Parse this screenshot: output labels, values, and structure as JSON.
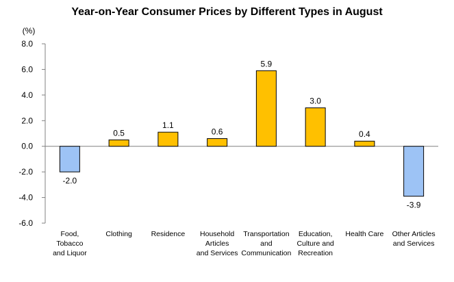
{
  "chart_data": {
    "type": "bar",
    "title": "Year-on-Year Consumer Prices by Different Types in August",
    "ylabel": "(%)",
    "ylim": [
      -6.0,
      8.0
    ],
    "yticks": [
      "8.0",
      "6.0",
      "4.0",
      "2.0",
      "0.0",
      "-2.0",
      "-4.0",
      "-6.0"
    ],
    "categories": [
      [
        "Food,",
        "Tobacco",
        "and Liquor"
      ],
      [
        "Clothing"
      ],
      [
        "Residence"
      ],
      [
        "Household",
        "Articles",
        "and Services"
      ],
      [
        "Transportation",
        "and",
        "Communication"
      ],
      [
        "Education,",
        "Culture and",
        "Recreation"
      ],
      [
        "Health Care"
      ],
      [
        "Other Articles",
        "and Services"
      ]
    ],
    "values": [
      -2.0,
      0.5,
      1.1,
      0.6,
      5.9,
      3.0,
      0.4,
      -3.9
    ],
    "data_labels": [
      "-2.0",
      "0.5",
      "1.1",
      "0.6",
      "5.9",
      "3.0",
      "0.4",
      "-3.9"
    ],
    "grid": false,
    "colors": {
      "positive": "#FFC000",
      "negative": "#9DC3F5",
      "bar_edge": "#000000",
      "axis": "#808080"
    }
  }
}
